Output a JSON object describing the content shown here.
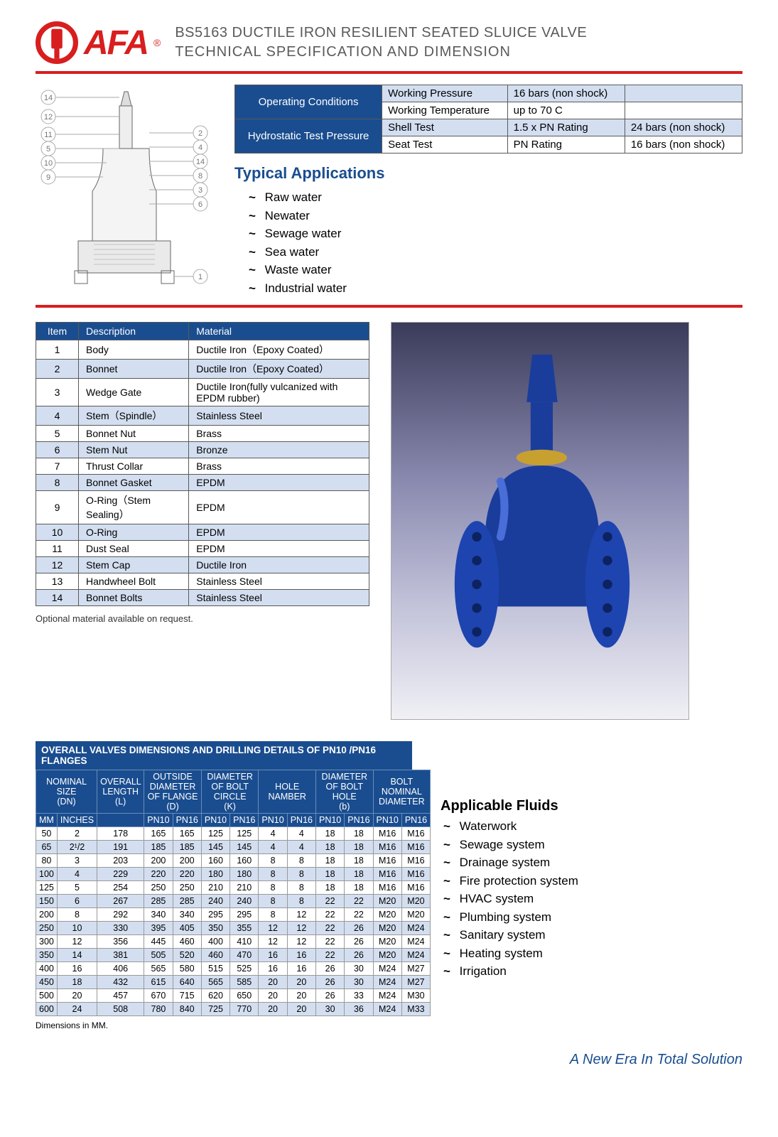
{
  "header": {
    "brand": "AFA",
    "title1": "BS5163 DUCTILE IRON RESILIENT SEATED SLUICE VALVE",
    "title2": "TECHNICAL  SPECIFICATION  AND  DIMENSION"
  },
  "conditions": {
    "h1": "Operating Conditions",
    "h2": "Hydrostatic Test Pressure",
    "rows": [
      {
        "label": "Working Pressure",
        "v1": "16 bars (non shock)",
        "v2": ""
      },
      {
        "label": "Working Temperature",
        "v1": "up to 70 C",
        "v2": ""
      },
      {
        "label": "Shell Test",
        "v1": "1.5 x PN Rating",
        "v2": "24 bars (non shock)"
      },
      {
        "label": "Seat Test",
        "v1": "PN Rating",
        "v2": "16 bars (non shock)"
      }
    ]
  },
  "typical": {
    "heading": "Typical Applications",
    "items": [
      "Raw water",
      "Newater",
      "Sewage water",
      "Sea water",
      "Waste water",
      "Industrial water"
    ]
  },
  "materials": {
    "h_item": "Item",
    "h_desc": "Description",
    "h_mat": "Material",
    "note": "Optional material available on request.",
    "rows": [
      {
        "n": "1",
        "d": "Body",
        "m": "Ductile Iron（Epoxy Coated）"
      },
      {
        "n": "2",
        "d": "Bonnet",
        "m": "Ductile Iron（Epoxy Coated）"
      },
      {
        "n": "3",
        "d": "Wedge Gate",
        "m": "Ductile Iron(fully vulcanized with EPDM rubber)"
      },
      {
        "n": "4",
        "d": "Stem（Spindle）",
        "m": "Stainless Steel"
      },
      {
        "n": "5",
        "d": "Bonnet Nut",
        "m": "Brass"
      },
      {
        "n": "6",
        "d": "Stem Nut",
        "m": "Bronze"
      },
      {
        "n": "7",
        "d": "Thrust Collar",
        "m": "Brass"
      },
      {
        "n": "8",
        "d": "Bonnet Gasket",
        "m": "EPDM"
      },
      {
        "n": "9",
        "d": "O-Ring（Stem Sealing）",
        "m": "EPDM"
      },
      {
        "n": "10",
        "d": "O-Ring",
        "m": "EPDM"
      },
      {
        "n": "11",
        "d": "Dust Seal",
        "m": "EPDM"
      },
      {
        "n": "12",
        "d": "Stem Cap",
        "m": "Ductile Iron"
      },
      {
        "n": "13",
        "d": "Handwheel Bolt",
        "m": "Stainless Steel"
      },
      {
        "n": "14",
        "d": "Bonnet Bolts",
        "m": "Stainless Steel"
      }
    ]
  },
  "dims": {
    "title": "OVERALL VALVES DIMENSIONS AND DRILLING DETAILS OF PN10 /PN16 FLANGES",
    "note": "Dimensions in MM.",
    "group_headers": [
      "NOMINAL SIZE (DN)",
      "OVERALL LENGTH (L)",
      "OUTSIDE DIAMETER OF FLANGE (D)",
      "DIAMETER OF BOLT CIRCLE (K)",
      "HOLE NAMBER",
      "DIAMETER OF BOLT HOLE (b)",
      "BOLT NOMINAL DIAMETER"
    ],
    "sub_cols": [
      "MM",
      "INCHES",
      "",
      "PN10",
      "PN16",
      "PN10",
      "PN16",
      "PN10",
      "PN16",
      "PN10",
      "PN16",
      "PN10",
      "PN16"
    ],
    "rows": [
      [
        "50",
        "2",
        "178",
        "165",
        "165",
        "125",
        "125",
        "4",
        "4",
        "18",
        "18",
        "M16",
        "M16"
      ],
      [
        "65",
        "2¹/2",
        "191",
        "185",
        "185",
        "145",
        "145",
        "4",
        "4",
        "18",
        "18",
        "M16",
        "M16"
      ],
      [
        "80",
        "3",
        "203",
        "200",
        "200",
        "160",
        "160",
        "8",
        "8",
        "18",
        "18",
        "M16",
        "M16"
      ],
      [
        "100",
        "4",
        "229",
        "220",
        "220",
        "180",
        "180",
        "8",
        "8",
        "18",
        "18",
        "M16",
        "M16"
      ],
      [
        "125",
        "5",
        "254",
        "250",
        "250",
        "210",
        "210",
        "8",
        "8",
        "18",
        "18",
        "M16",
        "M16"
      ],
      [
        "150",
        "6",
        "267",
        "285",
        "285",
        "240",
        "240",
        "8",
        "8",
        "22",
        "22",
        "M20",
        "M20"
      ],
      [
        "200",
        "8",
        "292",
        "340",
        "340",
        "295",
        "295",
        "8",
        "12",
        "22",
        "22",
        "M20",
        "M20"
      ],
      [
        "250",
        "10",
        "330",
        "395",
        "405",
        "350",
        "355",
        "12",
        "12",
        "22",
        "26",
        "M20",
        "M24"
      ],
      [
        "300",
        "12",
        "356",
        "445",
        "460",
        "400",
        "410",
        "12",
        "12",
        "22",
        "26",
        "M20",
        "M24"
      ],
      [
        "350",
        "14",
        "381",
        "505",
        "520",
        "460",
        "470",
        "16",
        "16",
        "22",
        "26",
        "M20",
        "M24"
      ],
      [
        "400",
        "16",
        "406",
        "565",
        "580",
        "515",
        "525",
        "16",
        "16",
        "26",
        "30",
        "M24",
        "M27"
      ],
      [
        "450",
        "18",
        "432",
        "615",
        "640",
        "565",
        "585",
        "20",
        "20",
        "26",
        "30",
        "M24",
        "M27"
      ],
      [
        "500",
        "20",
        "457",
        "670",
        "715",
        "620",
        "650",
        "20",
        "20",
        "26",
        "33",
        "M24",
        "M30"
      ],
      [
        "600",
        "24",
        "508",
        "780",
        "840",
        "725",
        "770",
        "20",
        "20",
        "30",
        "36",
        "M24",
        "M33"
      ]
    ]
  },
  "fluids": {
    "heading": "Applicable Fluids",
    "items": [
      "Waterwork",
      "Sewage system",
      "Drainage system",
      "Fire protection system",
      "HVAC system",
      "Plumbing system",
      "Sanitary system",
      "Heating system",
      "Irrigation"
    ]
  },
  "footer": "A New Era In Total Solution",
  "colors": {
    "brand": "#d81e1e",
    "accent": "#1a4d8f",
    "alt_row": "#d3dff0"
  }
}
